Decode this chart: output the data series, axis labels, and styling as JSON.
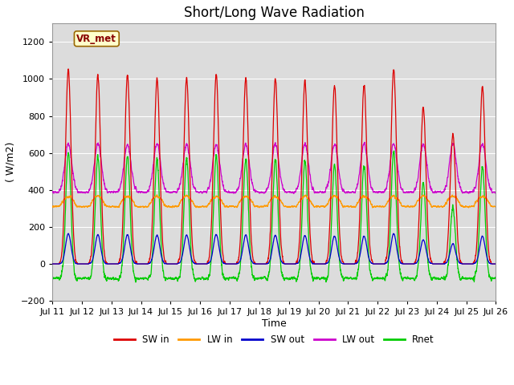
{
  "title": "Short/Long Wave Radiation",
  "xlabel": "Time",
  "ylabel": "( W/m2)",
  "ylim": [
    -200,
    1300
  ],
  "yticks": [
    -200,
    0,
    200,
    400,
    600,
    800,
    1000,
    1200
  ],
  "num_days": 15,
  "points_per_day": 288,
  "colors": {
    "SW_in": "#dd0000",
    "LW_in": "#ff9900",
    "SW_out": "#0000cc",
    "LW_out": "#cc00cc",
    "Rnet": "#00cc00"
  },
  "legend_labels": [
    "SW in",
    "LW in",
    "SW out",
    "LW out",
    "Rnet"
  ],
  "annotation": "VR_met",
  "bg_color": "#dcdcdc",
  "fig_bg_color": "#ffffff",
  "grid_color": "#ffffff",
  "title_fontsize": 12,
  "label_fontsize": 9,
  "tick_fontsize": 8
}
